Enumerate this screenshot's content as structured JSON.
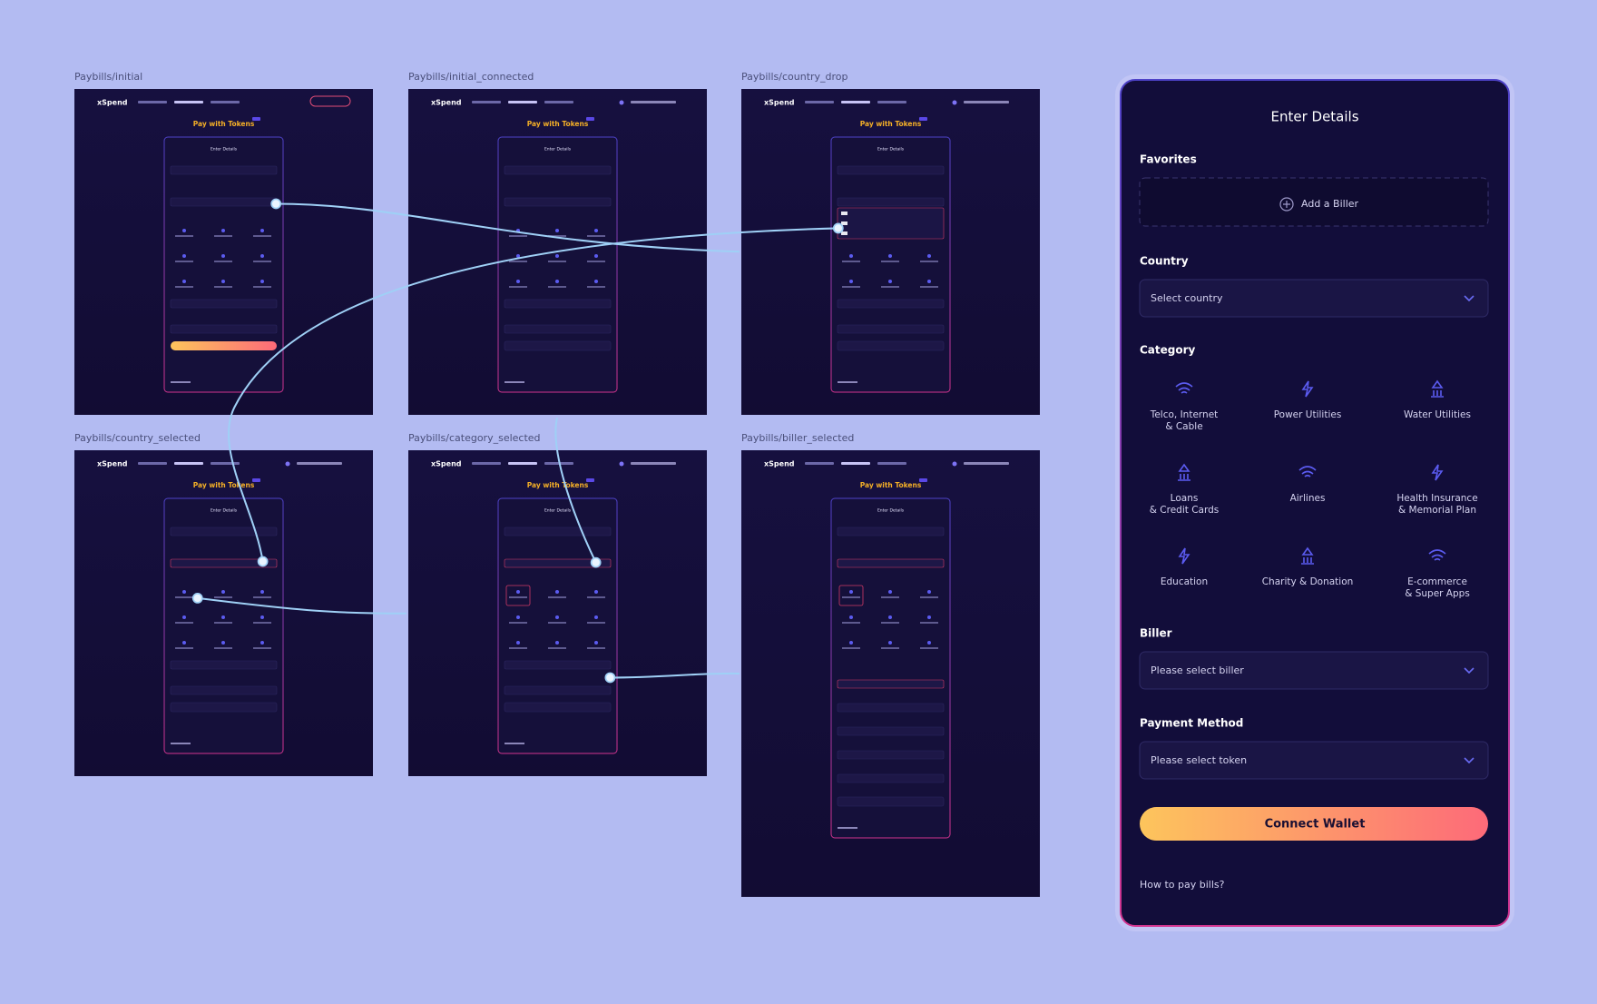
{
  "frames": [
    {
      "label": "Paybills/initial"
    },
    {
      "label": "Paybills/initial_connected"
    },
    {
      "label": "Paybills/country_drop"
    },
    {
      "label": "Paybills/country_selected"
    },
    {
      "label": "Paybills/category_selected"
    },
    {
      "label": "Paybills/biller_selected"
    }
  ],
  "thumbnail": {
    "brand": "xSpend",
    "heading": "Pay with Tokens",
    "card_title": "Enter Details"
  },
  "panel": {
    "title": "Enter Details",
    "favorites_label": "Favorites",
    "add_biller": "Add a Biller",
    "country_label": "Country",
    "country_placeholder": "Select country",
    "category_label": "Category",
    "categories": [
      {
        "lines": [
          "Telco, Internet",
          "& Cable"
        ]
      },
      {
        "lines": [
          "Power Utilities"
        ]
      },
      {
        "lines": [
          "Water Utilities"
        ]
      },
      {
        "lines": [
          "Loans",
          "& Credit Cards"
        ]
      },
      {
        "lines": [
          "Airlines"
        ]
      },
      {
        "lines": [
          "Health Insurance",
          "& Memorial Plan"
        ]
      },
      {
        "lines": [
          "Education"
        ]
      },
      {
        "lines": [
          "Charity & Donation"
        ]
      },
      {
        "lines": [
          "E-commerce",
          "& Super Apps"
        ]
      }
    ],
    "biller_label": "Biller",
    "biller_placeholder": "Please select biller",
    "payment_label": "Payment Method",
    "payment_placeholder": "Please select token",
    "button": "Connect Wallet",
    "help": "How to pay bills?"
  }
}
